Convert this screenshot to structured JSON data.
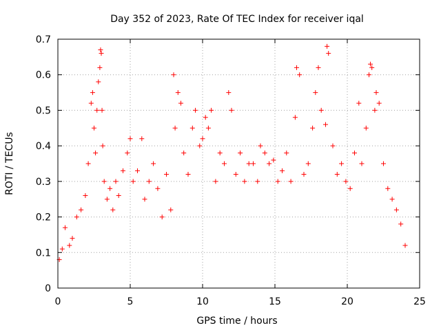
{
  "chart_data": {
    "type": "scatter",
    "title": "Day 352 of 2023, Rate Of TEC Index for receiver iqal",
    "xlabel": "GPS time / hours",
    "ylabel": "ROTI / TECUs",
    "xlim": [
      0,
      25
    ],
    "ylim": [
      0,
      0.7
    ],
    "xticks": [
      0,
      5,
      10,
      15,
      20,
      25
    ],
    "yticks": [
      0,
      0.1,
      0.2,
      0.3,
      0.4,
      0.5,
      0.6,
      0.7
    ],
    "xtick_labels": [
      "0",
      "5",
      "10",
      "15",
      "20",
      "25"
    ],
    "ytick_labels": [
      "0",
      "0.1",
      "0.2",
      "0.3",
      "0.4",
      "0.5",
      "0.6",
      "0.7"
    ],
    "grid": true,
    "legend": "none",
    "marker": "+",
    "color": "#ff0000",
    "series": [
      {
        "x": [
          0.1,
          0.3,
          0.5,
          0.8,
          1.0,
          1.3,
          1.6,
          1.9,
          2.1,
          2.3,
          2.4,
          2.5,
          2.6,
          2.7,
          2.8,
          2.9,
          2.95,
          3.0,
          3.05,
          3.1,
          3.2,
          3.4,
          3.6,
          3.8,
          4.0,
          4.2,
          4.5,
          4.8,
          5.0,
          5.2,
          5.5,
          5.8,
          6.0,
          6.3,
          6.6,
          6.9,
          7.2,
          7.5,
          7.8,
          8.0,
          8.1,
          8.3,
          8.5,
          8.7,
          9.0,
          9.3,
          9.5,
          9.8,
          10.0,
          10.2,
          10.4,
          10.6,
          10.9,
          11.2,
          11.5,
          11.8,
          12.0,
          12.3,
          12.6,
          12.9,
          13.2,
          13.5,
          13.8,
          14.0,
          14.3,
          14.6,
          14.9,
          15.2,
          15.5,
          15.8,
          16.1,
          16.4,
          16.5,
          16.7,
          17.0,
          17.3,
          17.6,
          17.8,
          18.0,
          18.2,
          18.5,
          18.6,
          18.7,
          19.0,
          19.3,
          19.6,
          19.9,
          20.2,
          20.5,
          20.8,
          21.0,
          21.3,
          21.5,
          21.6,
          21.7,
          21.9,
          22.0,
          22.2,
          22.5,
          22.8,
          23.1,
          23.4,
          23.7,
          24.0
        ],
        "y": [
          0.08,
          0.11,
          0.17,
          0.12,
          0.14,
          0.2,
          0.22,
          0.26,
          0.35,
          0.52,
          0.55,
          0.45,
          0.38,
          0.5,
          0.58,
          0.62,
          0.67,
          0.66,
          0.5,
          0.4,
          0.3,
          0.25,
          0.28,
          0.22,
          0.3,
          0.26,
          0.33,
          0.38,
          0.42,
          0.3,
          0.33,
          0.42,
          0.25,
          0.3,
          0.35,
          0.28,
          0.2,
          0.32,
          0.22,
          0.6,
          0.45,
          0.55,
          0.52,
          0.38,
          0.32,
          0.45,
          0.5,
          0.4,
          0.42,
          0.48,
          0.45,
          0.5,
          0.3,
          0.38,
          0.35,
          0.55,
          0.5,
          0.32,
          0.38,
          0.3,
          0.35,
          0.35,
          0.3,
          0.4,
          0.38,
          0.35,
          0.36,
          0.3,
          0.33,
          0.38,
          0.3,
          0.48,
          0.62,
          0.6,
          0.32,
          0.35,
          0.45,
          0.55,
          0.62,
          0.5,
          0.46,
          0.68,
          0.66,
          0.4,
          0.32,
          0.35,
          0.3,
          0.28,
          0.38,
          0.52,
          0.35,
          0.45,
          0.6,
          0.63,
          0.62,
          0.5,
          0.55,
          0.52,
          0.35,
          0.28,
          0.25,
          0.22,
          0.18,
          0.12
        ]
      }
    ]
  }
}
